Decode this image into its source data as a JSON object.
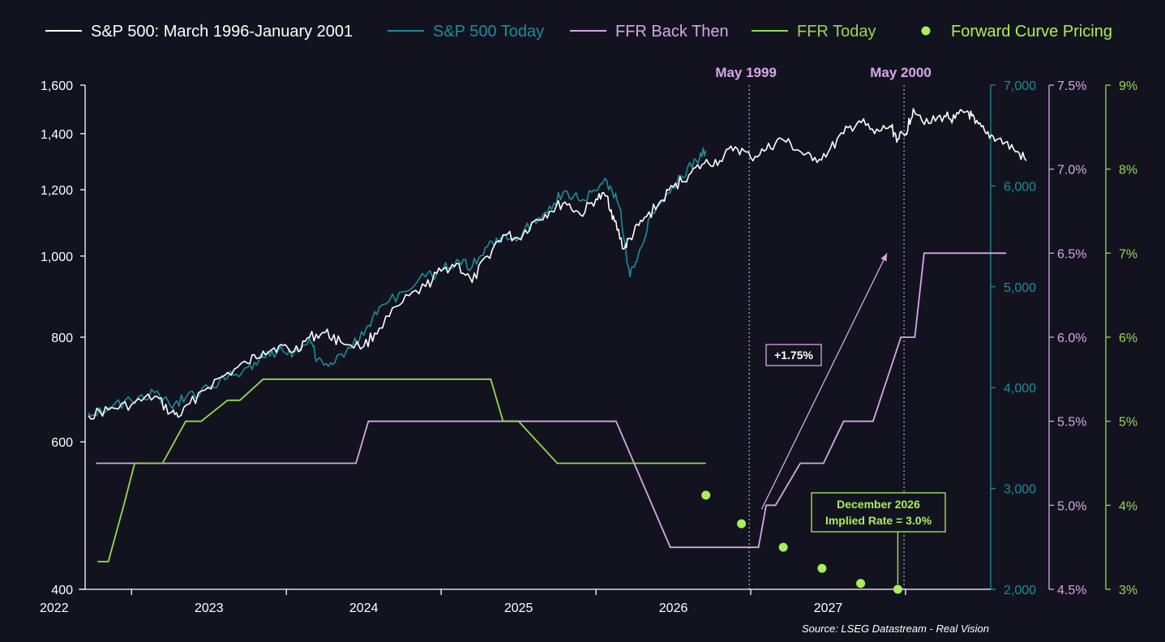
{
  "colors": {
    "background": "#13131f",
    "sp_then": "#ffffff",
    "sp_today": "#1c8c9a",
    "ffr_then": "#d6a6e6",
    "ffr_today": "#93d94f",
    "forward": "#a6f05a",
    "axis_left": "#ffffff",
    "axis_teal": "#1c8c9a",
    "axis_pink": "#d6a6e6",
    "axis_green": "#93d94f"
  },
  "legend": [
    {
      "label": "S&P 500: March 1996-January 2001",
      "color": "#ffffff",
      "marker": "line"
    },
    {
      "label": "S&P 500 Today",
      "color": "#1c8c9a",
      "marker": "line"
    },
    {
      "label": "FFR Back Then",
      "color": "#d6a6e6",
      "marker": "line"
    },
    {
      "label": "FFR Today",
      "color": "#93d94f",
      "marker": "line"
    },
    {
      "label": "Forward Curve Pricing",
      "color": "#a6f05a",
      "marker": "dot"
    }
  ],
  "source": "Source: LSEG Datastream - Real Vision",
  "chart_data": {
    "type": "line",
    "x_ticks": [
      "2022",
      "2023",
      "2024",
      "2025",
      "2026",
      "2027"
    ],
    "x_range": [
      2021.7,
      2027.55
    ],
    "axes": {
      "left": {
        "scale": "log",
        "range": [
          400,
          1600
        ],
        "ticks": [
          "400",
          "600",
          "800",
          "1,000",
          "1,200",
          "1,400",
          "1,600"
        ]
      },
      "right1": {
        "scale": "linear",
        "range": [
          2000,
          7000
        ],
        "ticks": [
          "2,000",
          "3,000",
          "4,000",
          "5,000",
          "6,000",
          "7,000"
        ]
      },
      "right2": {
        "scale": "linear",
        "range": [
          4.5,
          7.5
        ],
        "ticks": [
          "4.5%",
          "5.0%",
          "5.5%",
          "6.0%",
          "6.5%",
          "7.0%",
          "7.5%"
        ]
      },
      "right3": {
        "scale": "linear",
        "range": [
          3,
          9
        ],
        "ticks": [
          "3%",
          "4%",
          "5%",
          "6%",
          "7%",
          "8%",
          "9%"
        ]
      }
    },
    "series": [
      {
        "name": "S&P 500: March 1996-January 2001",
        "axis": "left",
        "points": [
          [
            2021.72,
            645
          ],
          [
            2021.85,
            655
          ],
          [
            2022.0,
            665
          ],
          [
            2022.15,
            680
          ],
          [
            2022.25,
            650
          ],
          [
            2022.32,
            645
          ],
          [
            2022.45,
            690
          ],
          [
            2022.6,
            720
          ],
          [
            2022.75,
            745
          ],
          [
            2022.85,
            770
          ],
          [
            2022.95,
            780
          ],
          [
            2023.05,
            770
          ],
          [
            2023.15,
            800
          ],
          [
            2023.25,
            810
          ],
          [
            2023.35,
            790
          ],
          [
            2023.5,
            780
          ],
          [
            2023.6,
            820
          ],
          [
            2023.75,
            880
          ],
          [
            2023.9,
            920
          ],
          [
            2024.0,
            960
          ],
          [
            2024.1,
            980
          ],
          [
            2024.2,
            930
          ],
          [
            2024.3,
            1000
          ],
          [
            2024.4,
            1060
          ],
          [
            2024.5,
            1050
          ],
          [
            2024.6,
            1100
          ],
          [
            2024.7,
            1130
          ],
          [
            2024.8,
            1160
          ],
          [
            2024.9,
            1120
          ],
          [
            2025.0,
            1170
          ],
          [
            2025.07,
            1180
          ],
          [
            2025.12,
            1100
          ],
          [
            2025.18,
            1020
          ],
          [
            2025.22,
            1050
          ],
          [
            2025.3,
            1100
          ],
          [
            2025.4,
            1150
          ],
          [
            2025.5,
            1210
          ],
          [
            2025.6,
            1250
          ],
          [
            2025.7,
            1290
          ],
          [
            2025.8,
            1300
          ],
          [
            2025.9,
            1350
          ],
          [
            2026.0,
            1310
          ],
          [
            2026.1,
            1340
          ],
          [
            2026.2,
            1380
          ],
          [
            2026.3,
            1340
          ],
          [
            2026.4,
            1300
          ],
          [
            2026.5,
            1330
          ],
          [
            2026.6,
            1400
          ],
          [
            2026.7,
            1450
          ],
          [
            2026.8,
            1400
          ],
          [
            2026.9,
            1430
          ],
          [
            2026.95,
            1380
          ],
          [
            2027.0,
            1400
          ],
          [
            2027.05,
            1500
          ],
          [
            2027.15,
            1440
          ],
          [
            2027.25,
            1470
          ],
          [
            2027.32,
            1460
          ],
          [
            2027.4,
            1490
          ],
          [
            2027.45,
            1440
          ],
          [
            2027.52,
            1400
          ],
          [
            2027.6,
            1380
          ],
          [
            2027.7,
            1340
          ],
          [
            2027.78,
            1300
          ]
        ]
      },
      {
        "name": "S&P 500 Today",
        "axis": "right1",
        "points": [
          [
            2021.72,
            3750
          ],
          [
            2021.85,
            3800
          ],
          [
            2022.0,
            3870
          ],
          [
            2022.15,
            3950
          ],
          [
            2022.25,
            3820
          ],
          [
            2022.35,
            3900
          ],
          [
            2022.5,
            4000
          ],
          [
            2022.62,
            4100
          ],
          [
            2022.75,
            4200
          ],
          [
            2022.85,
            4300
          ],
          [
            2022.95,
            4380
          ],
          [
            2023.05,
            4350
          ],
          [
            2023.15,
            4500
          ],
          [
            2023.2,
            4280
          ],
          [
            2023.3,
            4230
          ],
          [
            2023.4,
            4400
          ],
          [
            2023.5,
            4520
          ],
          [
            2023.6,
            4800
          ],
          [
            2023.75,
            4950
          ],
          [
            2023.9,
            5100
          ],
          [
            2024.0,
            5150
          ],
          [
            2024.1,
            5270
          ],
          [
            2024.2,
            5200
          ],
          [
            2024.3,
            5400
          ],
          [
            2024.4,
            5500
          ],
          [
            2024.5,
            5480
          ],
          [
            2024.6,
            5650
          ],
          [
            2024.7,
            5800
          ],
          [
            2024.8,
            5950
          ],
          [
            2024.9,
            5850
          ],
          [
            2025.0,
            5950
          ],
          [
            2025.07,
            6050
          ],
          [
            2025.15,
            5800
          ],
          [
            2025.22,
            5100
          ],
          [
            2025.27,
            5300
          ],
          [
            2025.35,
            5700
          ],
          [
            2025.45,
            5900
          ],
          [
            2025.55,
            6100
          ],
          [
            2025.65,
            6250
          ],
          [
            2025.71,
            6350
          ]
        ]
      },
      {
        "name": "FFR Back Then",
        "axis": "right2",
        "step": true,
        "points": [
          [
            2021.77,
            5.25
          ],
          [
            2023.45,
            5.25
          ],
          [
            2023.53,
            5.5
          ],
          [
            2025.13,
            5.5
          ],
          [
            2025.48,
            4.75
          ],
          [
            2025.8,
            4.75
          ],
          [
            2026.05,
            4.75
          ],
          [
            2026.1,
            5.0
          ],
          [
            2026.16,
            5.0
          ],
          [
            2026.32,
            5.25
          ],
          [
            2026.47,
            5.25
          ],
          [
            2026.6,
            5.5
          ],
          [
            2026.79,
            5.5
          ],
          [
            2026.97,
            6.0
          ],
          [
            2027.06,
            6.0
          ],
          [
            2027.12,
            6.5
          ],
          [
            2027.65,
            6.5
          ]
        ]
      },
      {
        "name": "FFR Today",
        "axis": "right3",
        "step": true,
        "points": [
          [
            2021.78,
            3.33
          ],
          [
            2021.85,
            3.33
          ],
          [
            2021.95,
            4.0
          ],
          [
            2022.02,
            4.5
          ],
          [
            2022.08,
            4.5
          ],
          [
            2022.2,
            4.5
          ],
          [
            2022.35,
            5.0
          ],
          [
            2022.45,
            5.0
          ],
          [
            2022.62,
            5.25
          ],
          [
            2022.7,
            5.25
          ],
          [
            2022.85,
            5.5
          ],
          [
            2024.32,
            5.5
          ],
          [
            2024.4,
            5.0
          ],
          [
            2024.5,
            5.0
          ],
          [
            2024.75,
            4.5
          ],
          [
            2025.71,
            4.5
          ]
        ]
      },
      {
        "name": "Forward Curve Pricing",
        "axis": "right3",
        "type": "scatter",
        "points": [
          [
            2025.71,
            4.12
          ],
          [
            2025.94,
            3.78
          ],
          [
            2026.21,
            3.5
          ],
          [
            2026.46,
            3.25
          ],
          [
            2026.71,
            3.07
          ],
          [
            2026.95,
            3.0
          ]
        ]
      }
    ],
    "annotations": [
      {
        "label": "May 1999",
        "x": 2025.99,
        "type": "vline"
      },
      {
        "label": "May 2000",
        "x": 2026.99,
        "type": "vline"
      },
      {
        "label": "+1.75%",
        "type": "arrow-box"
      },
      {
        "label_lines": [
          "December 2026",
          "Implied Rate = 3.0%"
        ],
        "type": "callout"
      }
    ],
    "grid": false,
    "legend_position": "top"
  }
}
